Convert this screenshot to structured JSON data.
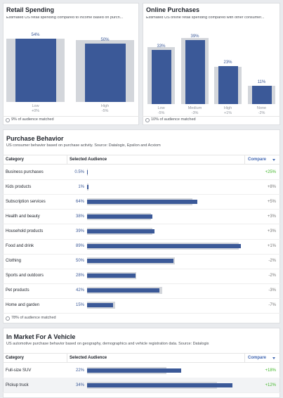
{
  "bar_color": "#3b5998",
  "benchmark_color": "#d3d6db",
  "panels_top": [
    {
      "title": "Retail Spending",
      "subtitle": "Estimated US retail spending compared to income based on purch...",
      "bars": [
        {
          "label": "Low",
          "value": 54,
          "value_label": "54%",
          "benchmark": 54,
          "compare": "+0%"
        },
        {
          "label": "High",
          "value": 50,
          "value_label": "50%",
          "benchmark": 52.6,
          "compare": "-5%"
        }
      ],
      "footer": "9% of audience matched"
    },
    {
      "title": "Online Purchases",
      "subtitle": "Estimated US online retail spending compared with other consumer...",
      "bars": [
        {
          "label": "Low",
          "value": 33,
          "value_label": "33%",
          "benchmark": 34.7,
          "compare": "-5%"
        },
        {
          "label": "Medium",
          "value": 39,
          "value_label": "39%",
          "benchmark": 40.2,
          "compare": "-3%"
        },
        {
          "label": "High",
          "value": 23,
          "value_label": "23%",
          "benchmark": 22.8,
          "compare": "+1%"
        },
        {
          "label": "None",
          "value": 11,
          "value_label": "11%",
          "benchmark": 11.2,
          "compare": "-2%"
        }
      ],
      "footer": "10% of audience matched"
    }
  ],
  "tables": [
    {
      "title": "Purchase Behavior",
      "subtitle": "US consumer behavior based on purchase activity. Source: Datalogix, Epsilon and Acxiom",
      "columns": [
        "Category",
        "Selected Audience",
        "Compare"
      ],
      "rows": [
        {
          "category": "Business purchases",
          "value": 0.5,
          "value_label": "0.5%",
          "benchmark": 0.4,
          "compare": "+25%",
          "compare_color": "#42b72a"
        },
        {
          "category": "Kids products",
          "value": 1,
          "value_label": "1%",
          "benchmark": 0.93,
          "compare": "+8%",
          "compare_color": "#777777"
        },
        {
          "category": "Subscription services",
          "value": 64,
          "value_label": "64%",
          "benchmark": 61,
          "compare": "+5%",
          "compare_color": "#777777"
        },
        {
          "category": "Health and beauty",
          "value": 38,
          "value_label": "38%",
          "benchmark": 37,
          "compare": "+3%",
          "compare_color": "#777777"
        },
        {
          "category": "Household products",
          "value": 39,
          "value_label": "39%",
          "benchmark": 38,
          "compare": "+3%",
          "compare_color": "#777777"
        },
        {
          "category": "Food and drink",
          "value": 89,
          "value_label": "89%",
          "benchmark": 88,
          "compare": "+1%",
          "compare_color": "#777777"
        },
        {
          "category": "Clothing",
          "value": 50,
          "value_label": "50%",
          "benchmark": 51,
          "compare": "-2%",
          "compare_color": "#777777"
        },
        {
          "category": "Sports and outdoors",
          "value": 28,
          "value_label": "28%",
          "benchmark": 28.6,
          "compare": "-2%",
          "compare_color": "#777777"
        },
        {
          "category": "Pet products",
          "value": 42,
          "value_label": "42%",
          "benchmark": 43.3,
          "compare": "-3%",
          "compare_color": "#777777"
        },
        {
          "category": "Home and garden",
          "value": 15,
          "value_label": "15%",
          "benchmark": 16.1,
          "compare": "-7%",
          "compare_color": "#777777"
        }
      ],
      "footer": "78% of audience matched"
    },
    {
      "title": "In Market For A Vehicle",
      "subtitle": "US automotive purchase behavior based on geography, demographics and vehicle registration data. Source: Datalogix",
      "columns": [
        "Category",
        "Selected Audience",
        "Compare"
      ],
      "rows": [
        {
          "category": "Full-size SUV",
          "value": 22,
          "value_label": "22%",
          "benchmark": 18.6,
          "compare": "+18%",
          "compare_color": "#42b72a"
        },
        {
          "category": "Pickup truck",
          "value": 34,
          "value_label": "34%",
          "benchmark": 30.4,
          "compare": "+12%",
          "compare_color": "#42b72a"
        }
      ]
    }
  ]
}
